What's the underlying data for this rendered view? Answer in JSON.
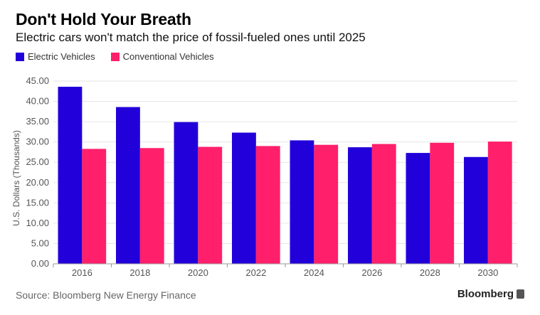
{
  "title": "Don't Hold Your Breath",
  "subtitle": "Electric cars won't match the price of fossil-fueled ones until 2025",
  "source": "Source: Bloomberg New Energy Finance",
  "brand": "Bloomberg",
  "colors": {
    "electric": "#2200d9",
    "conventional": "#ff1f6b",
    "grid": "#e6e6e6",
    "axis": "#999999"
  },
  "chart_data": {
    "type": "bar",
    "categories": [
      "2016",
      "2018",
      "2020",
      "2022",
      "2024",
      "2026",
      "2028",
      "2030"
    ],
    "series": [
      {
        "name": "Electric Vehicles",
        "values": [
          43.6,
          38.6,
          34.9,
          32.3,
          30.4,
          28.7,
          27.3,
          26.3
        ]
      },
      {
        "name": "Conventional Vehicles",
        "values": [
          28.3,
          28.5,
          28.8,
          29.0,
          29.3,
          29.5,
          29.8,
          30.1
        ]
      }
    ],
    "ylabel": "U.S. Dollars (Thousands)",
    "ylim": [
      0,
      45
    ],
    "yticks": [
      "0.00",
      "5.00",
      "10.00",
      "15.00",
      "20.00",
      "25.00",
      "30.00",
      "35.00",
      "40.00",
      "45.00"
    ],
    "grid": true,
    "legend_position": "top-left"
  }
}
